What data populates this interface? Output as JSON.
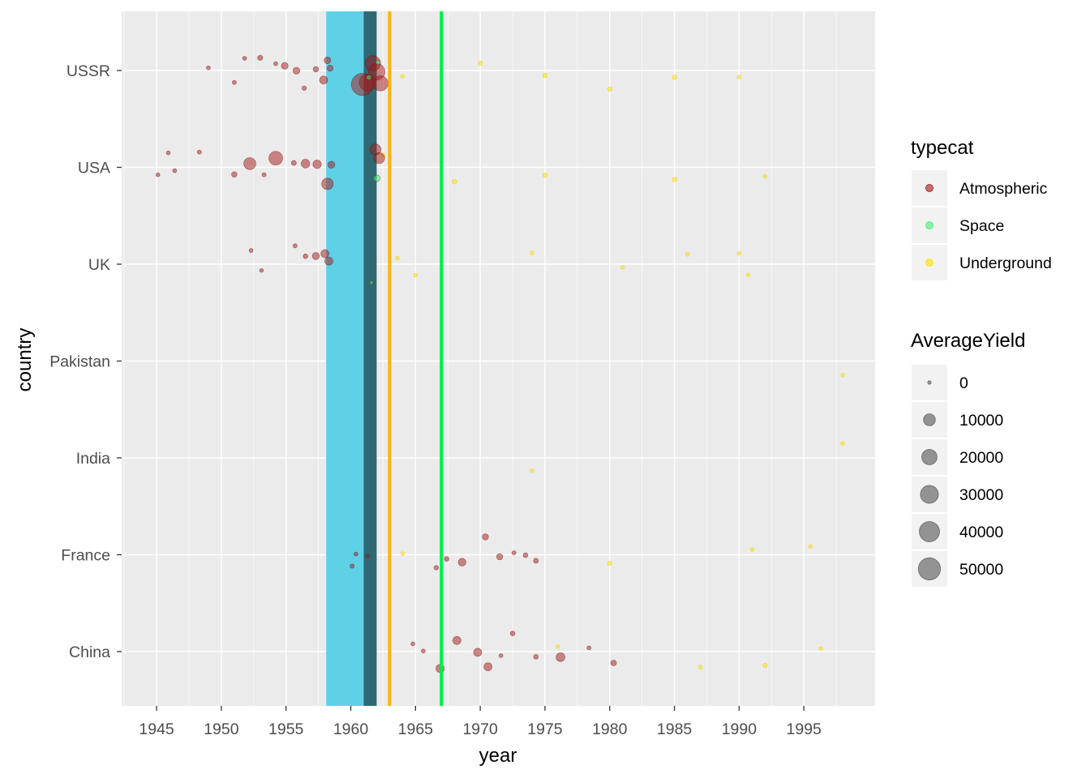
{
  "chart_data": {
    "type": "scatter",
    "xlabel": "year",
    "ylabel": "country",
    "xlim": [
      1942.3,
      2000.5
    ],
    "x_ticks": [
      "1945",
      "1950",
      "1955",
      "1960",
      "1965",
      "1970",
      "1975",
      "1980",
      "1985",
      "1990",
      "1995"
    ],
    "y_categories": [
      "USSR",
      "USA",
      "UK",
      "Pakistan",
      "India",
      "France",
      "China"
    ],
    "grid": true,
    "vertical_bands": [
      {
        "from": 1958.1,
        "to": 1961.0,
        "color": "#5ED1E6"
      },
      {
        "from": 1961.0,
        "to": 1962.0,
        "color": "#2E6974"
      }
    ],
    "vertical_lines": [
      {
        "x": 1963.0,
        "color": "#FFB300"
      },
      {
        "x": 1967.0,
        "color": "#00EE44"
      }
    ],
    "colors": {
      "Atmospheric": "#A31818",
      "Space": "#44EE77",
      "Underground": "#FFE000",
      "panel": "#EBEBEB",
      "grid": "#FFFFFF"
    },
    "legend_color": {
      "title": "typecat",
      "position": "right",
      "items": [
        {
          "label": "Atmospheric",
          "color": "#A31818"
        },
        {
          "label": "Space",
          "color": "#44EE77"
        },
        {
          "label": "Underground",
          "color": "#FFE000"
        }
      ]
    },
    "legend_size": {
      "title": "AverageYield",
      "items": [
        {
          "label": "0",
          "value": 0
        },
        {
          "label": "10000",
          "value": 10000
        },
        {
          "label": "20000",
          "value": 20000
        },
        {
          "label": "30000",
          "value": 30000
        },
        {
          "label": "40000",
          "value": 40000
        },
        {
          "label": "50000",
          "value": 50000
        }
      ]
    },
    "series": [
      {
        "name": "Atmospheric",
        "points": [
          {
            "country": "USSR",
            "x": 1949.0,
            "yield": 22
          },
          {
            "country": "USSR",
            "x": 1951.0,
            "yield": 40
          },
          {
            "country": "USSR",
            "x": 1951.8,
            "yield": 25
          },
          {
            "country": "USSR",
            "x": 1953.0,
            "yield": 400
          },
          {
            "country": "USSR",
            "x": 1954.2,
            "yield": 30
          },
          {
            "country": "USSR",
            "x": 1954.9,
            "yield": 1500
          },
          {
            "country": "USSR",
            "x": 1955.8,
            "yield": 1600
          },
          {
            "country": "USSR",
            "x": 1956.4,
            "yield": 100
          },
          {
            "country": "USSR",
            "x": 1957.3,
            "yield": 500
          },
          {
            "country": "USSR",
            "x": 1957.9,
            "yield": 2900
          },
          {
            "country": "USSR",
            "x": 1958.2,
            "yield": 1500
          },
          {
            "country": "USSR",
            "x": 1958.4,
            "yield": 900
          },
          {
            "country": "USSR",
            "x": 1960.9,
            "yield": 50000
          },
          {
            "country": "USSR",
            "x": 1961.3,
            "yield": 25000
          },
          {
            "country": "USSR",
            "x": 1961.7,
            "yield": 20000
          },
          {
            "country": "USSR",
            "x": 1962.0,
            "yield": 24200
          },
          {
            "country": "USSR",
            "x": 1962.3,
            "yield": 19100
          },
          {
            "country": "USA",
            "x": 1945.1,
            "yield": 20
          },
          {
            "country": "USA",
            "x": 1945.9,
            "yield": 21
          },
          {
            "country": "USA",
            "x": 1946.4,
            "yield": 23
          },
          {
            "country": "USA",
            "x": 1948.3,
            "yield": 37
          },
          {
            "country": "USA",
            "x": 1951.0,
            "yield": 500
          },
          {
            "country": "USA",
            "x": 1952.2,
            "yield": 10400
          },
          {
            "country": "USA",
            "x": 1953.3,
            "yield": 61
          },
          {
            "country": "USA",
            "x": 1954.2,
            "yield": 15000
          },
          {
            "country": "USA",
            "x": 1955.6,
            "yield": 300
          },
          {
            "country": "USA",
            "x": 1956.5,
            "yield": 3800
          },
          {
            "country": "USA",
            "x": 1957.4,
            "yield": 3400
          },
          {
            "country": "USA",
            "x": 1958.2,
            "yield": 9300
          },
          {
            "country": "USA",
            "x": 1958.5,
            "yield": 1800
          },
          {
            "country": "USA",
            "x": 1961.9,
            "yield": 8300
          },
          {
            "country": "USA",
            "x": 1962.2,
            "yield": 7650
          },
          {
            "country": "UK",
            "x": 1952.3,
            "yield": 25
          },
          {
            "country": "UK",
            "x": 1953.1,
            "yield": 10
          },
          {
            "country": "UK",
            "x": 1955.7,
            "yield": 60
          },
          {
            "country": "UK",
            "x": 1956.5,
            "yield": 200
          },
          {
            "country": "UK",
            "x": 1957.3,
            "yield": 1800
          },
          {
            "country": "UK",
            "x": 1958.3,
            "yield": 3000
          },
          {
            "country": "UK",
            "x": 1958.0,
            "yield": 3000
          },
          {
            "country": "France",
            "x": 1960.1,
            "yield": 70
          },
          {
            "country": "France",
            "x": 1960.4,
            "yield": 20
          },
          {
            "country": "France",
            "x": 1961.3,
            "yield": 10
          },
          {
            "country": "France",
            "x": 1966.6,
            "yield": 120
          },
          {
            "country": "France",
            "x": 1967.4,
            "yield": 200
          },
          {
            "country": "France",
            "x": 1968.6,
            "yield": 2600
          },
          {
            "country": "France",
            "x": 1970.4,
            "yield": 1000
          },
          {
            "country": "France",
            "x": 1971.5,
            "yield": 1000
          },
          {
            "country": "France",
            "x": 1972.6,
            "yield": 50
          },
          {
            "country": "France",
            "x": 1973.5,
            "yield": 200
          },
          {
            "country": "France",
            "x": 1974.3,
            "yield": 300
          },
          {
            "country": "China",
            "x": 1964.8,
            "yield": 22
          },
          {
            "country": "China",
            "x": 1965.6,
            "yield": 35
          },
          {
            "country": "China",
            "x": 1966.9,
            "yield": 3300
          },
          {
            "country": "China",
            "x": 1968.2,
            "yield": 3000
          },
          {
            "country": "China",
            "x": 1969.8,
            "yield": 3000
          },
          {
            "country": "China",
            "x": 1970.6,
            "yield": 3000
          },
          {
            "country": "China",
            "x": 1971.6,
            "yield": 20
          },
          {
            "country": "China",
            "x": 1972.5,
            "yield": 200
          },
          {
            "country": "China",
            "x": 1974.3,
            "yield": 200
          },
          {
            "country": "China",
            "x": 1976.2,
            "yield": 4000
          },
          {
            "country": "China",
            "x": 1978.4,
            "yield": 20
          },
          {
            "country": "China",
            "x": 1980.3,
            "yield": 700
          }
        ]
      },
      {
        "name": "Space",
        "points": [
          {
            "country": "USSR",
            "x": 1961.4,
            "yield": 300
          },
          {
            "country": "USSR",
            "x": 1962.1,
            "yield": 250
          },
          {
            "country": "USA",
            "x": 1962.0,
            "yield": 1450
          },
          {
            "country": "UK",
            "x": 1961.6,
            "yield": 20
          }
        ]
      },
      {
        "name": "Underground",
        "points": [
          {
            "country": "USSR",
            "x": 1964.0,
            "yield": 20
          },
          {
            "country": "USSR",
            "x": 1970.0,
            "yield": 100
          },
          {
            "country": "USSR",
            "x": 1975.0,
            "yield": 150
          },
          {
            "country": "USSR",
            "x": 1980.0,
            "yield": 150
          },
          {
            "country": "USSR",
            "x": 1985.0,
            "yield": 150
          },
          {
            "country": "USSR",
            "x": 1990.0,
            "yield": 20
          },
          {
            "country": "USA",
            "x": 1962.5,
            "yield": 100
          },
          {
            "country": "USA",
            "x": 1968.0,
            "yield": 200
          },
          {
            "country": "USA",
            "x": 1975.0,
            "yield": 150
          },
          {
            "country": "USA",
            "x": 1985.0,
            "yield": 150
          },
          {
            "country": "USA",
            "x": 1992.0,
            "yield": 20
          },
          {
            "country": "UK",
            "x": 1963.6,
            "yield": 15
          },
          {
            "country": "UK",
            "x": 1965.0,
            "yield": 15
          },
          {
            "country": "UK",
            "x": 1974.0,
            "yield": 15
          },
          {
            "country": "UK",
            "x": 1981.0,
            "yield": 15
          },
          {
            "country": "UK",
            "x": 1986.0,
            "yield": 15
          },
          {
            "country": "UK",
            "x": 1990.0,
            "yield": 15
          },
          {
            "country": "UK",
            "x": 1990.7,
            "yield": 15
          },
          {
            "country": "Pakistan",
            "x": 1998.0,
            "yield": 15
          },
          {
            "country": "India",
            "x": 1974.0,
            "yield": 12
          },
          {
            "country": "India",
            "x": 1998.0,
            "yield": 20
          },
          {
            "country": "France",
            "x": 1964.0,
            "yield": 20
          },
          {
            "country": "France",
            "x": 1980.0,
            "yield": 100
          },
          {
            "country": "France",
            "x": 1991.0,
            "yield": 20
          },
          {
            "country": "France",
            "x": 1995.5,
            "yield": 30
          },
          {
            "country": "China",
            "x": 1976.0,
            "yield": 20
          },
          {
            "country": "China",
            "x": 1987.0,
            "yield": 50
          },
          {
            "country": "China",
            "x": 1992.0,
            "yield": 100
          },
          {
            "country": "China",
            "x": 1996.3,
            "yield": 30
          }
        ]
      }
    ]
  }
}
